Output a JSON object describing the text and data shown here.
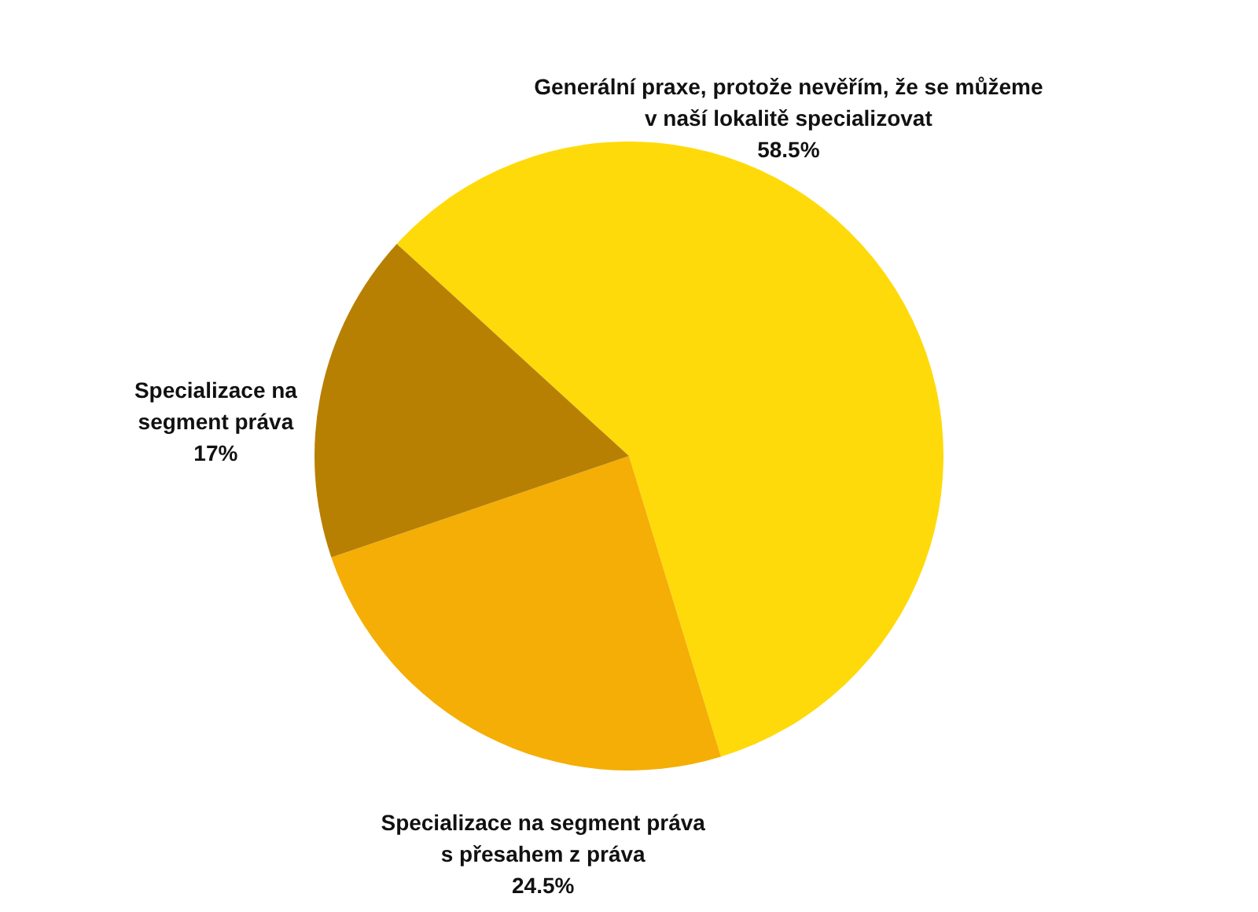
{
  "chart_data": {
    "type": "pie",
    "categories": [
      "Generální praxe, protože nevěřím, že se můžeme\nv naší lokalitě specializovat",
      "Specializace na segment práva\ns přesahem z práva",
      "Specializace na\nsegment práva"
    ],
    "values": [
      58.5,
      24.5,
      17
    ],
    "value_labels": [
      "58.5%",
      "24.5%",
      "17%"
    ],
    "colors": [
      "#ffda0a",
      "#f5ae05",
      "#b88003"
    ]
  }
}
